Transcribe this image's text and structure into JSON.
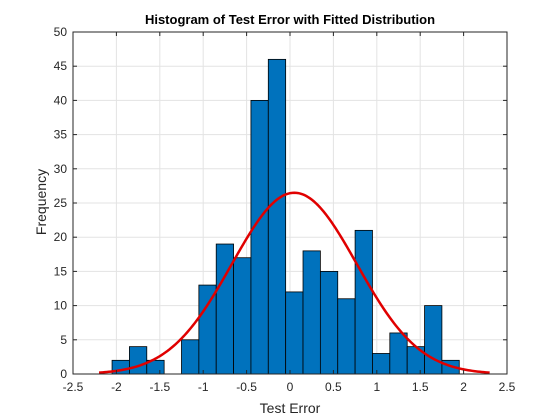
{
  "chart_data": {
    "type": "bar",
    "title": "Histogram of Test Error with Fitted Distribution",
    "xlabel": "Test Error",
    "ylabel": "Frequency",
    "xlim": [
      -2.5,
      2.5
    ],
    "ylim": [
      0,
      50
    ],
    "x_ticks": [
      "-2.5",
      "-2",
      "-1.5",
      "-1",
      "-0.5",
      "0",
      "0.5",
      "1",
      "1.5",
      "2",
      "2.5"
    ],
    "y_ticks": [
      "0",
      "5",
      "10",
      "15",
      "20",
      "25",
      "30",
      "35",
      "40",
      "45",
      "50"
    ],
    "grid": true,
    "bins": {
      "edges": [
        -2.05,
        -1.85,
        -1.65,
        -1.45,
        -1.25,
        -1.05,
        -0.85,
        -0.65,
        -0.45,
        -0.25,
        -0.05,
        0.15,
        0.35,
        0.55,
        0.75,
        0.95,
        1.15,
        1.35,
        1.55,
        1.75,
        1.95
      ],
      "counts": [
        2,
        4,
        2,
        0,
        5,
        13,
        19,
        17,
        40,
        46,
        12,
        18,
        15,
        11,
        21,
        3,
        6,
        4,
        10,
        2
      ]
    },
    "fitted_curve": {
      "type": "normal",
      "mean": 0.05,
      "std": 0.72,
      "peak": 26.5,
      "x_range": [
        -2.2,
        2.3
      ]
    },
    "colors": {
      "bar_fill": "#0072BD",
      "bar_edge": "#000000",
      "curve": "#E00000",
      "grid": "#e3e3e3",
      "axis": "#262626"
    }
  }
}
